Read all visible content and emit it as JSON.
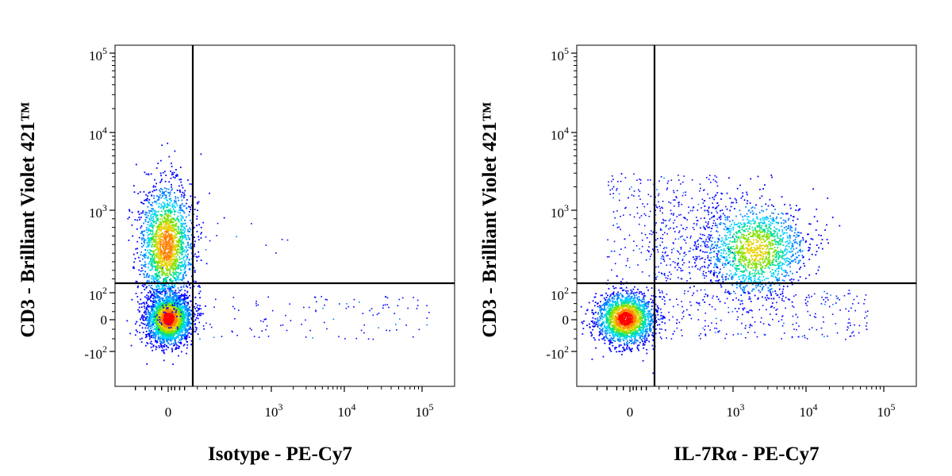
{
  "chart_data": [
    {
      "type": "scatter",
      "subtype": "flow-cytometry-density-dot-plot",
      "xlabel": "Isotype - PE-Cy7",
      "ylabel": "CD3 - Brilliant Violet 421™",
      "x_scale": "biexponential",
      "y_scale": "biexponential",
      "x_ticks": [
        "0",
        "10^3",
        "10^4",
        "10^5"
      ],
      "y_ticks": [
        "10^5",
        "10^4",
        "10^3",
        "10^2",
        "0",
        "-10^2"
      ],
      "quadrant_gate": {
        "x": 150,
        "y": 150
      },
      "populations": [
        {
          "name": "CD3+ / PE-Cy7-",
          "x_center": 0,
          "y_center": 700,
          "relative_size": 0.42
        },
        {
          "name": "CD3- / PE-Cy7-",
          "x_center": 0,
          "y_center": 0,
          "relative_size": 0.55
        },
        {
          "name": "PE-Cy7+ scatter",
          "x_center": 3000,
          "y_center": 10,
          "relative_size": 0.02
        }
      ],
      "colormap": [
        "#0000ff",
        "#00c0ff",
        "#00e080",
        "#c8e000",
        "#ff8000",
        "#ff0000"
      ]
    },
    {
      "type": "scatter",
      "subtype": "flow-cytometry-density-dot-plot",
      "xlabel": "IL-7Rα - PE-Cy7",
      "ylabel": "CD3 - Brilliant Violet 421™",
      "x_scale": "biexponential",
      "y_scale": "biexponential",
      "x_ticks": [
        "0",
        "10^3",
        "10^4",
        "10^5"
      ],
      "y_ticks": [
        "10^5",
        "10^4",
        "10^3",
        "10^2",
        "0",
        "-10^2"
      ],
      "quadrant_gate": {
        "x": 150,
        "y": 150
      },
      "populations": [
        {
          "name": "CD3+ / IL-7Rα+",
          "x_center": 2000,
          "y_center": 600,
          "relative_size": 0.3
        },
        {
          "name": "CD3+ / IL-7Rα- (sparse)",
          "x_center": 0,
          "y_center": 500,
          "relative_size": 0.1
        },
        {
          "name": "CD3- / IL-7Rα-",
          "x_center": 0,
          "y_center": 0,
          "relative_size": 0.5
        },
        {
          "name": "CD3- / IL-7Rα+ (sparse)",
          "x_center": 1500,
          "y_center": 0,
          "relative_size": 0.1
        }
      ],
      "colormap": [
        "#0000ff",
        "#00c0ff",
        "#00e080",
        "#c8e000",
        "#ff8000",
        "#ff0000"
      ]
    }
  ]
}
